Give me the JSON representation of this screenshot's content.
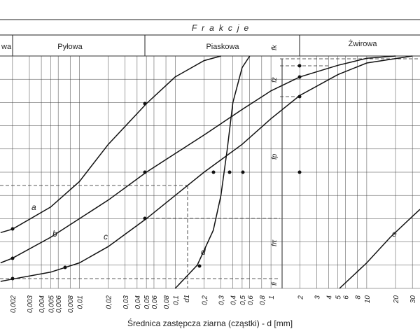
{
  "chart_data": {
    "type": "line",
    "title": "Frakcje",
    "fractions": [
      "wa",
      "Pyłowa",
      "Piaskowa",
      "Żwirowa"
    ],
    "x_label": "Średnica zastępcza ziarna (cząstki) - d [mm]",
    "log_x": true,
    "grid": true,
    "color": "#111111",
    "xlim": [
      0.00148,
      36
    ],
    "ylim": [
      0,
      100
    ],
    "yticks": [
      0,
      10,
      20,
      30,
      40,
      50,
      60,
      70,
      80,
      90,
      100
    ],
    "xticks": [
      {
        "value": 0.002,
        "label": "0,002"
      },
      {
        "value": 0.003,
        "label": "0,003"
      },
      {
        "value": 0.004,
        "label": "0,004"
      },
      {
        "value": 0.005,
        "label": "0,005"
      },
      {
        "value": 0.006,
        "label": "0,006"
      },
      {
        "value": 0.008,
        "label": "0,008"
      },
      {
        "value": 0.01,
        "label": "0,01"
      },
      {
        "value": 0.02,
        "label": "0,02"
      },
      {
        "value": 0.03,
        "label": "0,03"
      },
      {
        "value": 0.04,
        "label": "0,04"
      },
      {
        "value": 0.05,
        "label": "0,05"
      },
      {
        "value": 0.06,
        "label": "0,06"
      },
      {
        "value": 0.08,
        "label": "0,08"
      },
      {
        "value": 0.1,
        "label": "0,1"
      },
      {
        "value": 0.2,
        "label": "0,2"
      },
      {
        "value": 0.3,
        "label": "0,3"
      },
      {
        "value": 0.4,
        "label": "0,4"
      },
      {
        "value": 0.5,
        "label": "0,5"
      },
      {
        "value": 0.6,
        "label": "0,6"
      },
      {
        "value": 0.8,
        "label": "0,8"
      },
      1,
      2,
      3,
      4,
      5,
      6,
      8,
      10,
      20,
      30
    ],
    "series": [
      {
        "name": "a",
        "x": [
          0.0015,
          0.002,
          0.005,
          0.01,
          0.02,
          0.05,
          0.1,
          0.2,
          0.3
        ],
        "values": [
          24,
          25.5,
          35,
          46,
          62,
          79.5,
          91,
          98,
          100
        ]
      },
      {
        "name": "b",
        "x": [
          0.0015,
          0.002,
          0.005,
          0.01,
          0.02,
          0.05,
          0.1,
          0.2,
          0.5,
          1,
          2,
          5,
          10,
          20
        ],
        "values": [
          11,
          13,
          22,
          30,
          38,
          50,
          58,
          66,
          77,
          85,
          91,
          96,
          99,
          100
        ]
      },
      {
        "name": "c",
        "x": [
          0.0015,
          0.002,
          0.005,
          0.01,
          0.02,
          0.05,
          0.1,
          0.2,
          0.5,
          1,
          2,
          5,
          10,
          30
        ],
        "values": [
          3,
          4,
          7,
          11,
          18,
          30,
          40,
          50,
          62,
          73,
          83,
          92,
          97,
          100
        ]
      },
      {
        "name": "d",
        "x": [
          0.1,
          0.17,
          0.25,
          0.3,
          0.35,
          0.4,
          0.5,
          0.6
        ],
        "values": [
          0,
          10,
          25,
          40,
          60,
          80,
          95,
          100
        ]
      },
      {
        "name": "e",
        "x": [
          5.2,
          10,
          17.6,
          30,
          36
        ],
        "values": [
          0,
          11,
          22,
          31,
          34
        ]
      }
    ],
    "annotations": [
      "fk",
      "fż",
      "fp",
      "fπ",
      "fi",
      "d1"
    ]
  }
}
